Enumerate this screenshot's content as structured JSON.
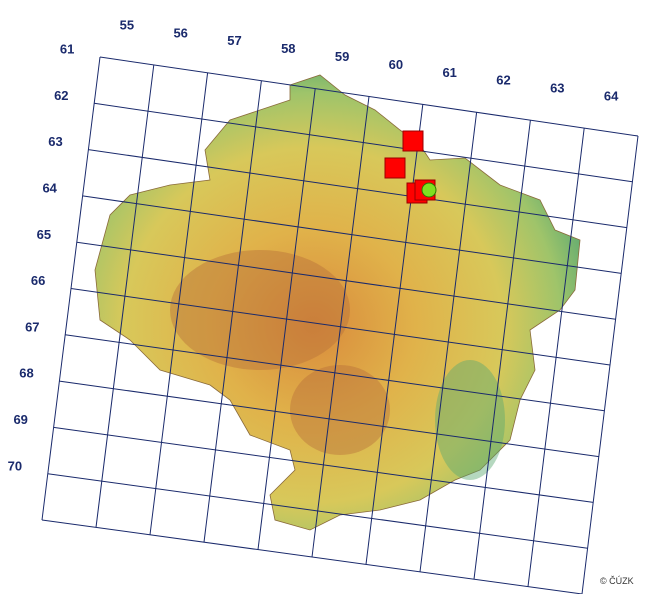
{
  "column_labels": [
    "55",
    "56",
    "57",
    "58",
    "59",
    "60",
    "61",
    "62",
    "63",
    "64"
  ],
  "row_labels": [
    "61",
    "62",
    "63",
    "64",
    "65",
    "66",
    "67",
    "68",
    "69",
    "70"
  ],
  "copyright": "© ČÚZK"
}
